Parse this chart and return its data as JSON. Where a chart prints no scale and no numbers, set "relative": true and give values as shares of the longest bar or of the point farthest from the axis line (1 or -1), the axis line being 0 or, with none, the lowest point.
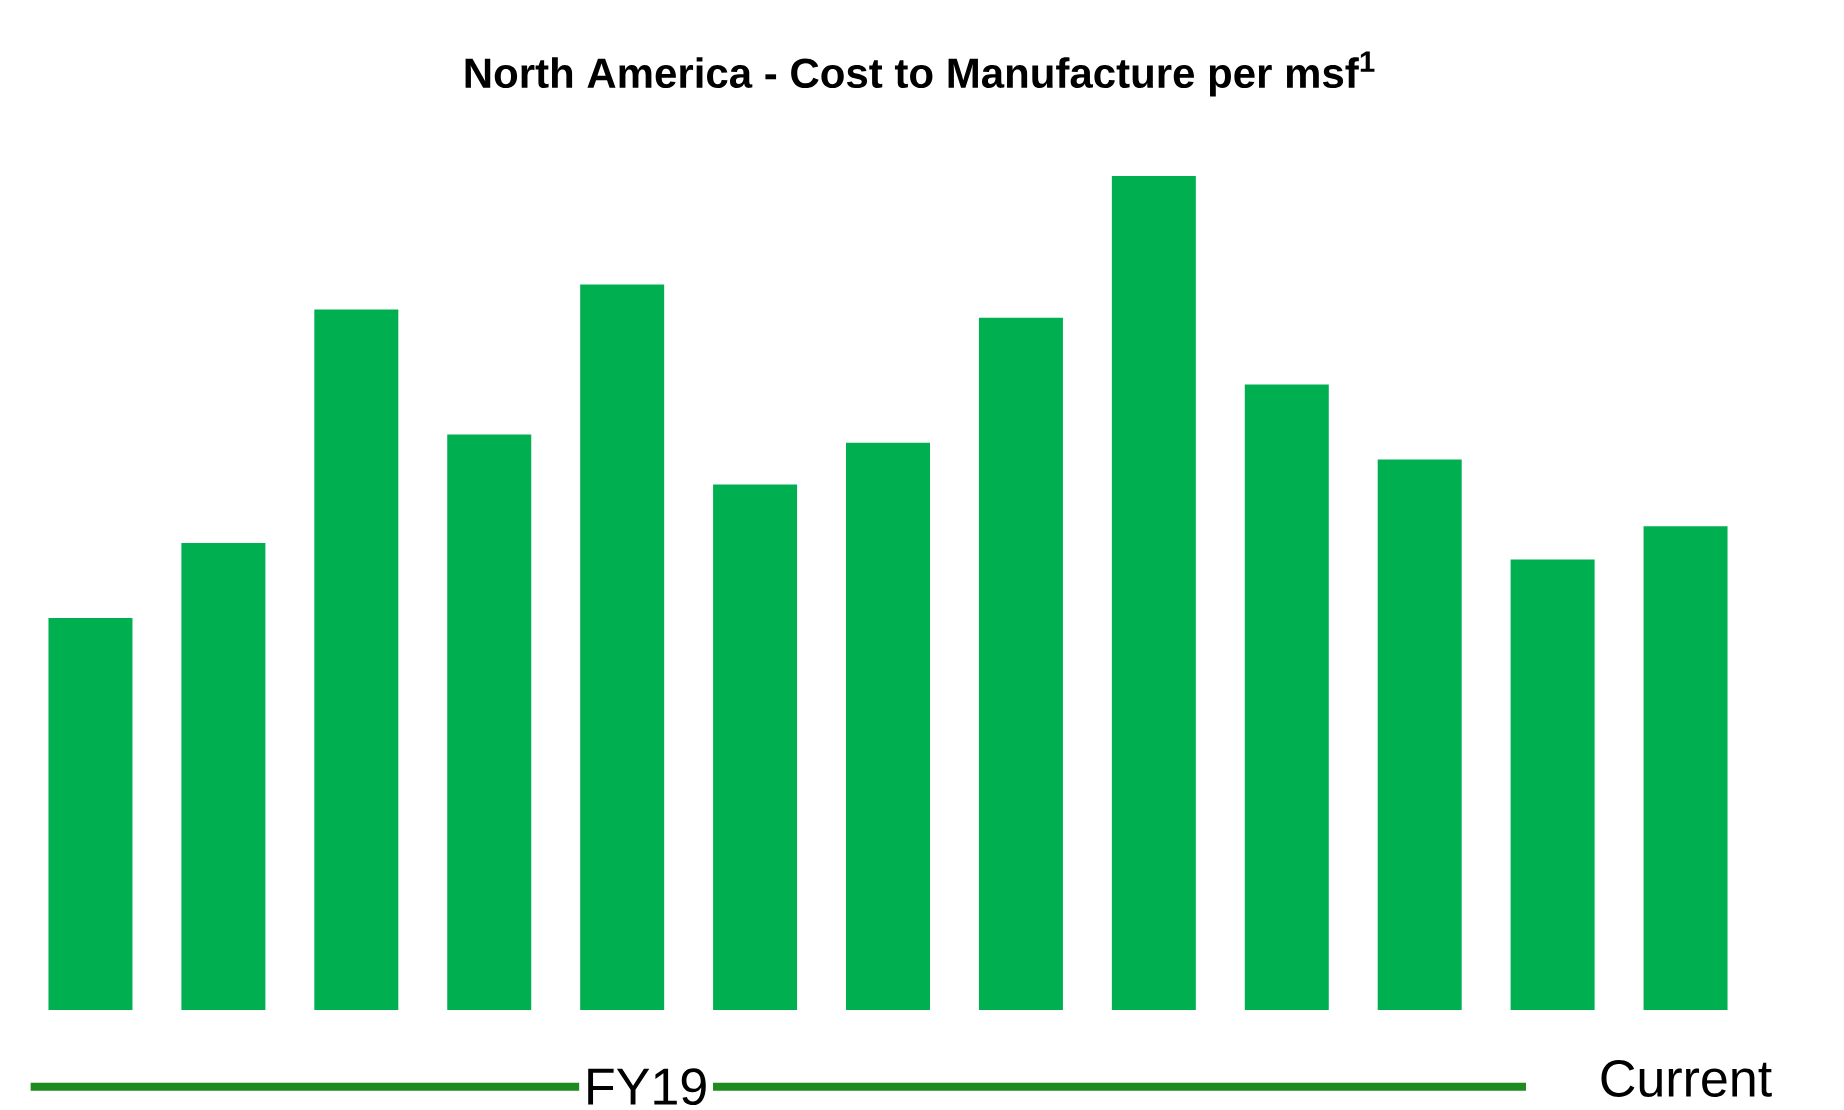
{
  "chart_data": {
    "type": "bar",
    "title": "North America - Cost to Manufacture per msf$^{1}$",
    "relative": true,
    "categories": [
      null,
      null,
      null,
      null,
      null,
      null,
      null,
      null,
      null,
      null,
      null,
      null,
      "Current"
    ],
    "values": [
      0.47,
      0.56,
      0.84,
      0.69,
      0.87,
      0.63,
      0.68,
      0.83,
      1,
      0.75,
      0.66,
      0.54,
      0.58
    ],
    "color": "#00b050",
    "annotations": [
      "FY19"
    ]
  }
}
